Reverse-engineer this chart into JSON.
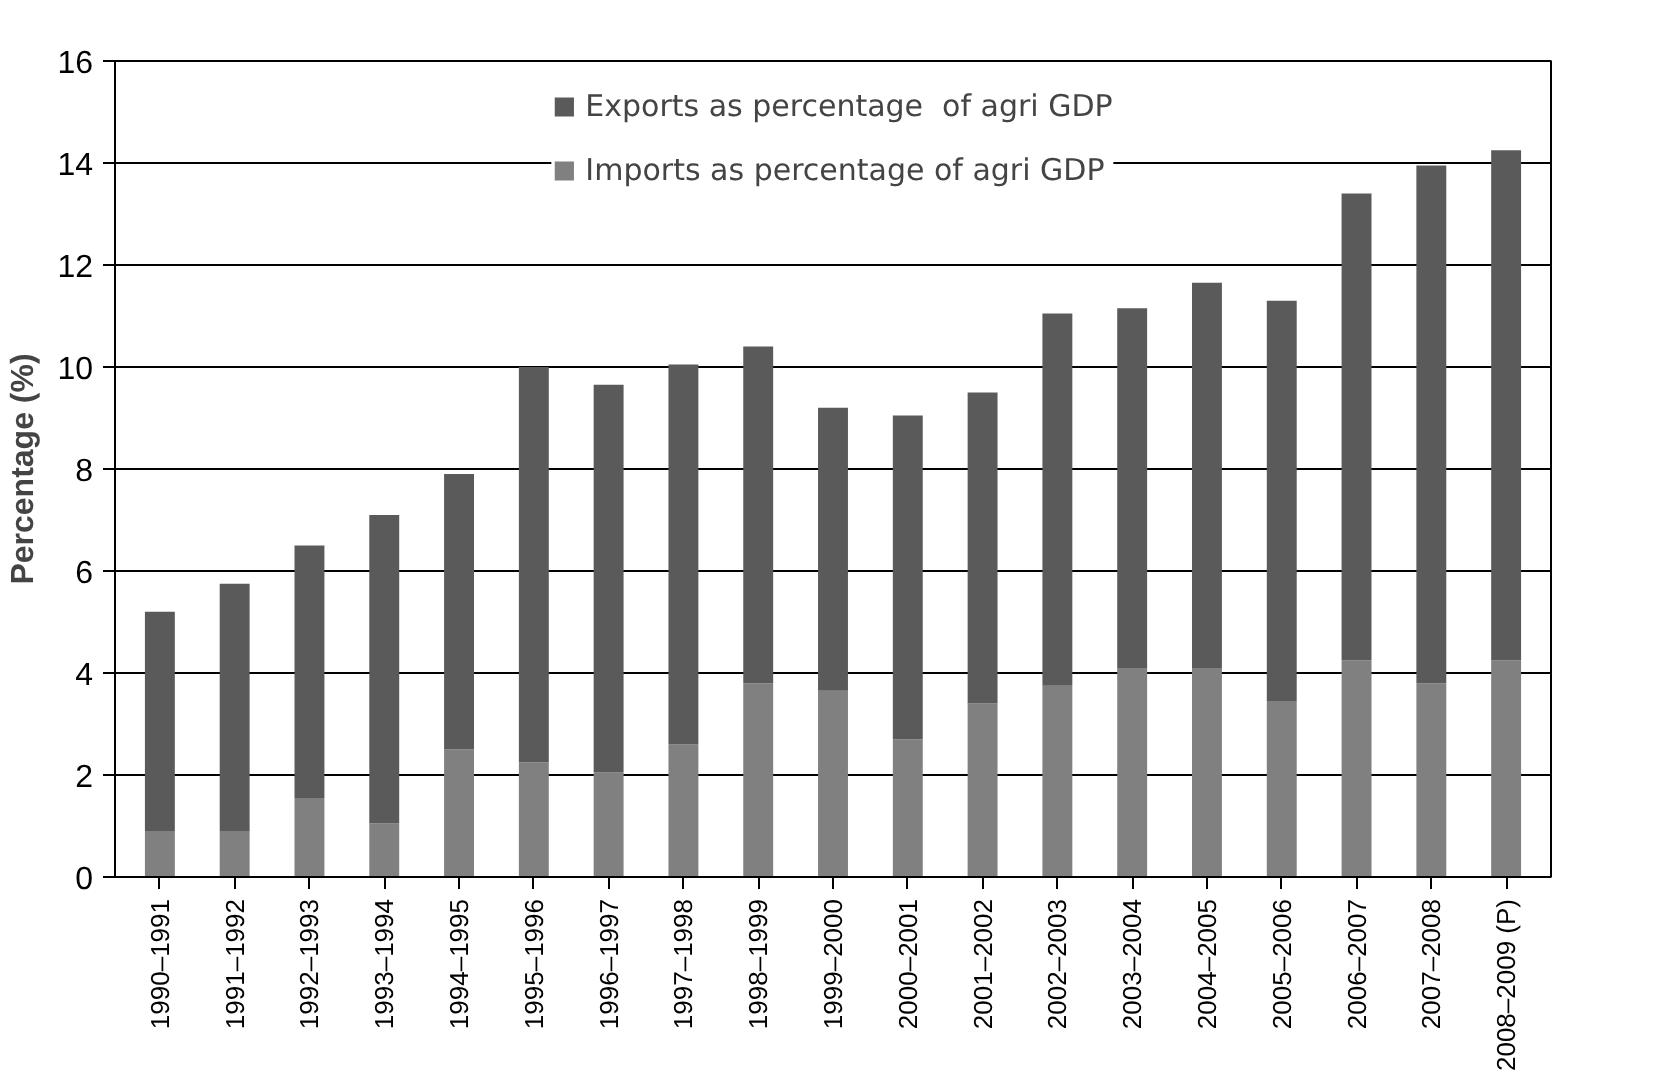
{
  "chart_data": {
    "type": "bar",
    "ylabel": "Percentage (%)",
    "stacked": true,
    "categories": [
      "1990–1991",
      "1991–1992",
      "1992–1993",
      "1993–1994",
      "1994–1995",
      "1995–1996",
      "1996–1997",
      "1997–1998",
      "1998–1999",
      "1999–2000",
      "2000–2001",
      "2001–2002",
      "2002–2003",
      "2003–2004",
      "2004–2005",
      "2005–2006",
      "2006–2007",
      "2007–2008",
      "2008–2009 (P)"
    ],
    "series": [
      {
        "name": "Imports as percentage of agri GDP",
        "color": "#808080",
        "values": [
          0.9,
          0.9,
          1.55,
          1.05,
          2.5,
          2.25,
          2.05,
          2.6,
          3.8,
          3.65,
          2.7,
          3.4,
          3.75,
          4.1,
          4.1,
          3.45,
          4.25,
          3.8,
          4.25
        ]
      },
      {
        "name": "Exports as percentage  of agri GDP",
        "color": "#5a5a5a",
        "values": [
          4.3,
          4.85,
          4.95,
          6.05,
          5.4,
          7.75,
          7.6,
          7.45,
          6.6,
          5.55,
          6.35,
          6.1,
          7.3,
          7.05,
          7.55,
          7.85,
          9.15,
          10.15,
          10.0
        ]
      }
    ],
    "ylim": [
      0,
      16
    ],
    "yticks": [
      0,
      2,
      4,
      6,
      8,
      10,
      12,
      14,
      16
    ],
    "grid": "y",
    "legend": "top"
  }
}
